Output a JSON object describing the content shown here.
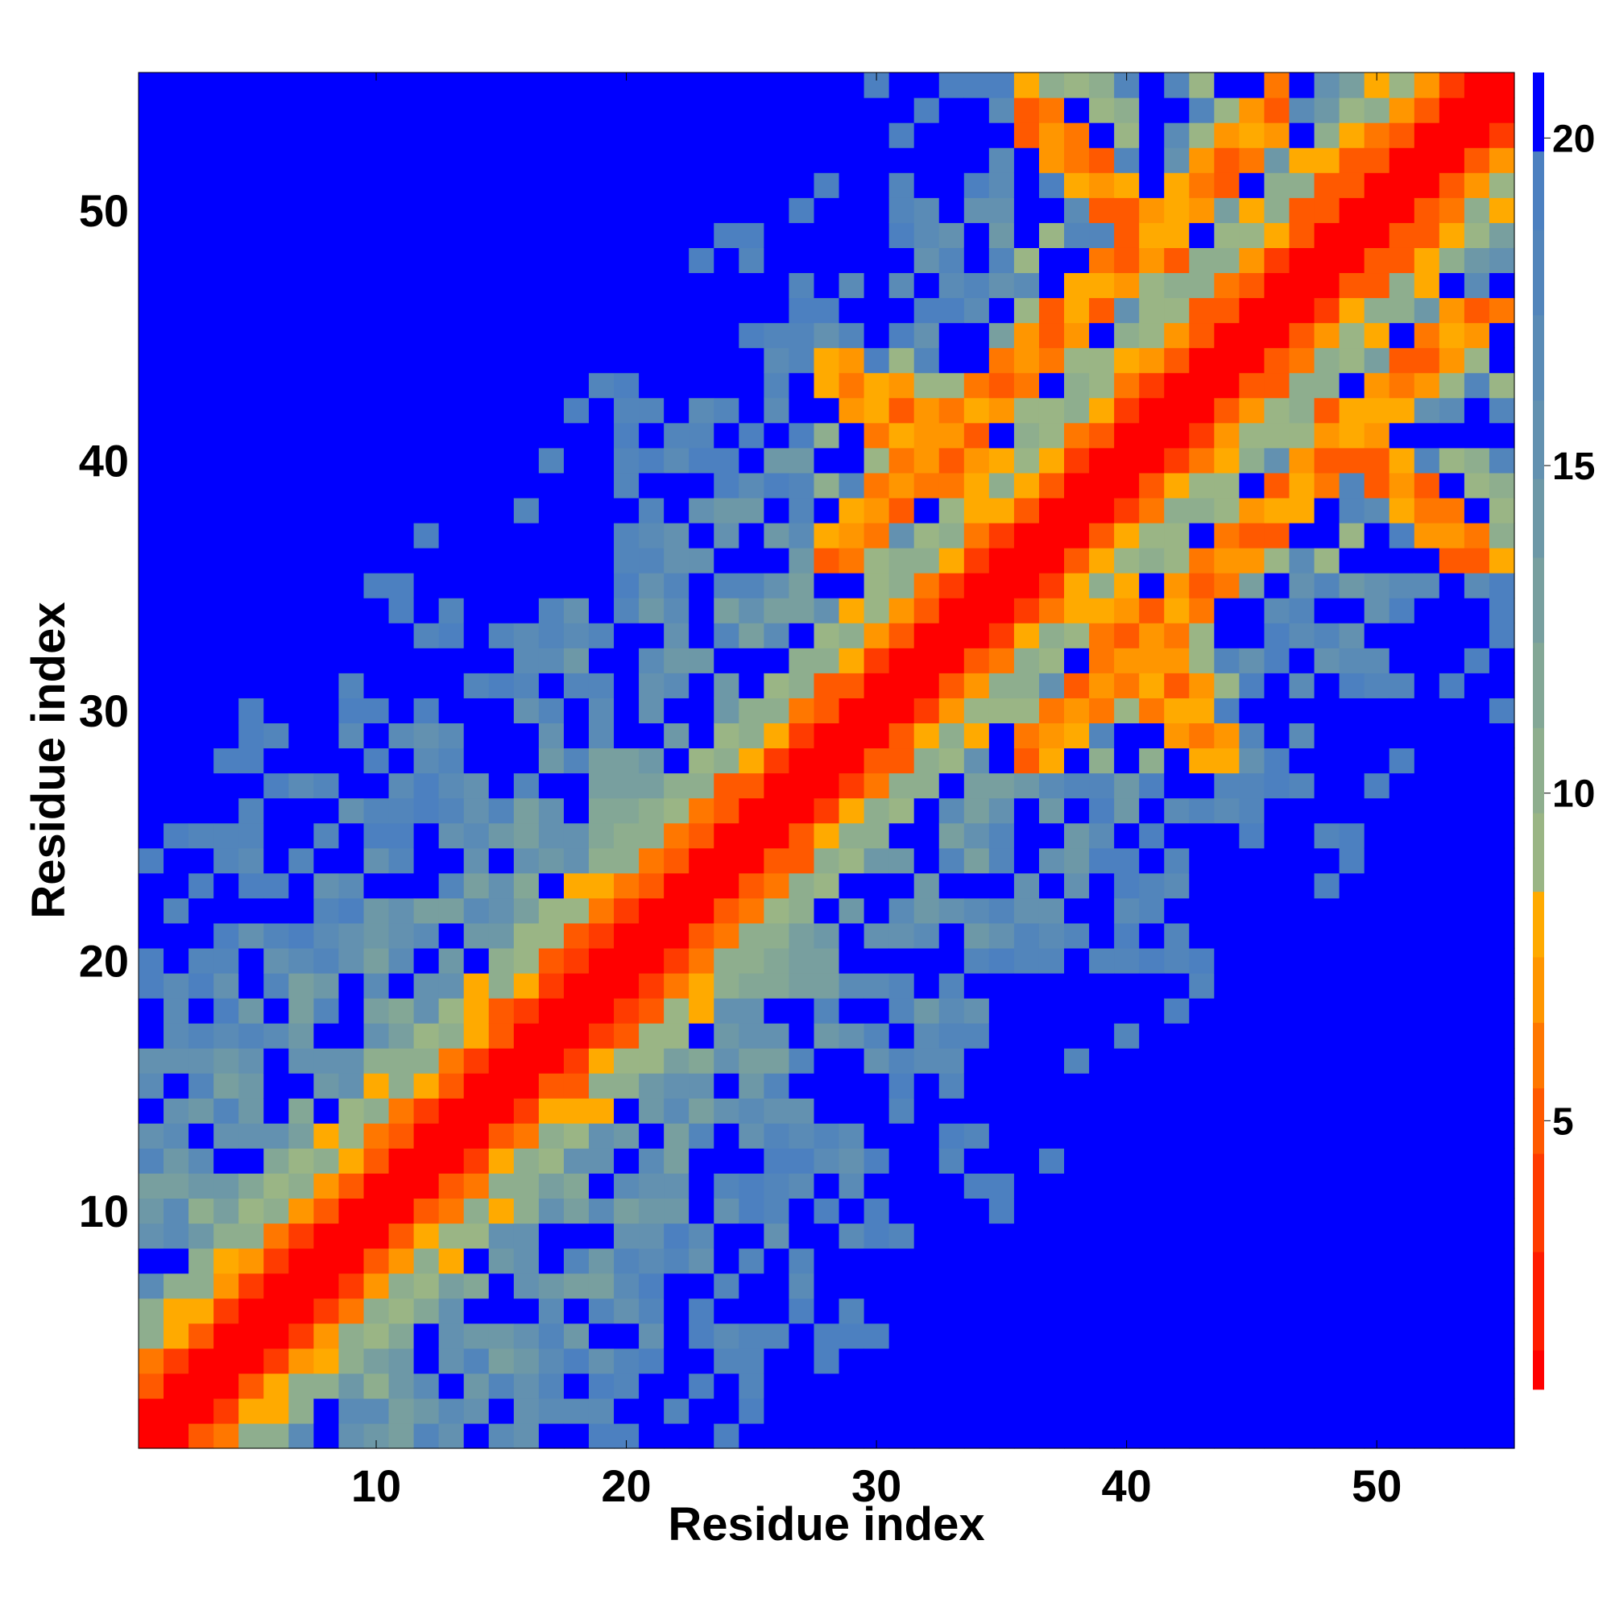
{
  "chart_data": {
    "type": "heatmap",
    "title": "",
    "xlabel": "Residue index",
    "ylabel": "Residue index",
    "n_residues": 55,
    "x_range": [
      1,
      55
    ],
    "y_range": [
      1,
      55
    ],
    "x_ticks": [
      10,
      20,
      30,
      40,
      50
    ],
    "y_ticks": [
      10,
      20,
      30,
      40,
      50
    ],
    "value_range": [
      0,
      21
    ],
    "colorbar": {
      "ticks": [
        5,
        10,
        15,
        20
      ],
      "position": "right",
      "levels": [
        {
          "upper": 1.5,
          "color": "#FF0000"
        },
        {
          "upper": 3.0,
          "color": "#FF1C00"
        },
        {
          "upper": 4.5,
          "color": "#FF3B00"
        },
        {
          "upper": 5.5,
          "color": "#FF5900"
        },
        {
          "upper": 6.5,
          "color": "#FF7700"
        },
        {
          "upper": 7.5,
          "color": "#FF9600"
        },
        {
          "upper": 8.5,
          "color": "#FFAA00"
        },
        {
          "upper": 9.7,
          "color": "#9AB585"
        },
        {
          "upper": 11.0,
          "color": "#8EAE8E"
        },
        {
          "upper": 12.3,
          "color": "#83A796"
        },
        {
          "upper": 13.6,
          "color": "#789F9F"
        },
        {
          "upper": 14.8,
          "color": "#6D98A7"
        },
        {
          "upper": 16.0,
          "color": "#6391B0"
        },
        {
          "upper": 17.3,
          "color": "#5A8BB6"
        },
        {
          "upper": 18.6,
          "color": "#5285BB"
        },
        {
          "upper": 19.8,
          "color": "#4C80C0"
        },
        {
          "upper": 21.0,
          "color": "#0000FF"
        }
      ]
    },
    "contact_rule": "distance |i-j| band along diagonal plus off-diagonal contact patches",
    "patches": [
      {
        "i_range": [
          36,
          44
        ],
        "j_range": [
          28,
          36
        ],
        "kind": "antidiagonal",
        "value": 6
      },
      {
        "i_range": [
          44,
          55
        ],
        "j_range": [
          36,
          46
        ],
        "kind": "antidiagonal",
        "value": 6
      },
      {
        "i_range": [
          36,
          42
        ],
        "j_range": [
          47,
          54
        ],
        "kind": "antidiagonal",
        "value": 6
      },
      {
        "i_range": [
          30,
          35
        ],
        "j_range": [
          37,
          43
        ],
        "kind": "antidiagonal",
        "value": 6
      }
    ]
  }
}
